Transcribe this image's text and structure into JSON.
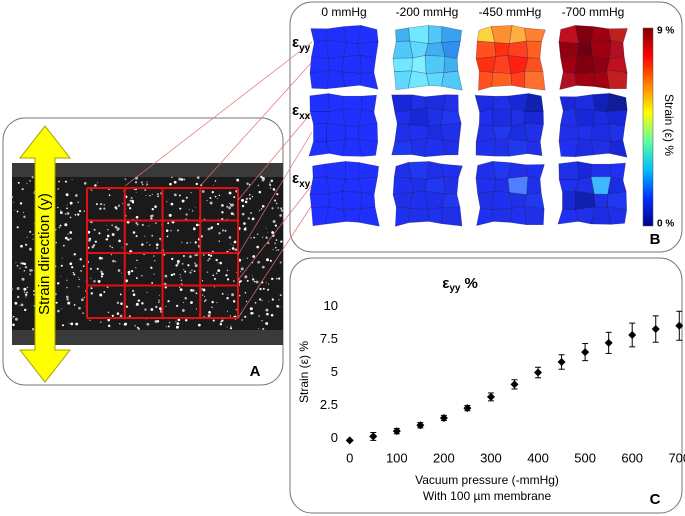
{
  "panel_a": {
    "label": "A",
    "arrow_text": "Strain direction (y)"
  },
  "panel_b": {
    "label": "B",
    "columns": [
      "0 mmHg",
      "-200 mmHg",
      "-450 mmHg",
      "-700 mmHg"
    ],
    "rows": [
      {
        "symbol": "ε",
        "subscript": "yy"
      },
      {
        "symbol": "ε",
        "subscript": "xx"
      },
      {
        "symbol": "ε",
        "subscript": "xy"
      }
    ],
    "colorbar": {
      "label": "Strain (ε) %",
      "max_label": "9 %",
      "min_label": "0 %",
      "colors": [
        "#00008f",
        "#0030ff",
        "#00c0ff",
        "#60ffa0",
        "#ffff00",
        "#ff8000",
        "#ff0000",
        "#800000"
      ]
    },
    "maps": [
      [
        "#2030ff",
        "#2030ff",
        "#2030ff",
        "#2030ff",
        "#2030ff",
        "#2030ff",
        "#2030ff",
        "#2030ff",
        "#2030ff",
        "#2030ff",
        "#2030ff",
        "#2030ff",
        "#2030ff",
        "#2030ff",
        "#2030ff",
        "#2030ff"
      ],
      [
        "#40b0f0",
        "#70e8ff",
        "#50c8f8",
        "#3aa0f0",
        "#50c8f8",
        "#60d8ff",
        "#40b0f0",
        "#3090f0",
        "#70e8ff",
        "#80f0ff",
        "#50c8f8",
        "#40b0f0",
        "#60d8ff",
        "#70e8ff",
        "#60d8ff",
        "#50c8f8"
      ],
      [
        "#ffd040",
        "#ff9030",
        "#ffb040",
        "#ff8030",
        "#ff5020",
        "#ff3010",
        "#ff4020",
        "#ff6020",
        "#ff3010",
        "#ff4020",
        "#ff2010",
        "#ff5020",
        "#ff5020",
        "#ff6020",
        "#ff4020",
        "#ff7030"
      ],
      [
        "#c01020",
        "#800010",
        "#a00010",
        "#c02020",
        "#900010",
        "#700010",
        "#a00010",
        "#b01020",
        "#a00010",
        "#800010",
        "#900010",
        "#c01020",
        "#b01020",
        "#a00010",
        "#a00010",
        "#c02020"
      ],
      [
        "#2030ff",
        "#2030ff",
        "#2030ff",
        "#2030ff",
        "#2030ff",
        "#2030ff",
        "#2030ff",
        "#2030ff",
        "#2030ff",
        "#2030ff",
        "#2030ff",
        "#2030ff",
        "#2030ff",
        "#2030ff",
        "#2030ff",
        "#2030ff"
      ],
      [
        "#1828d8",
        "#2030e8",
        "#1c2ce0",
        "#2030e8",
        "#2030f0",
        "#1828d8",
        "#2030e8",
        "#2038f0",
        "#2030e8",
        "#2030f0",
        "#1c2ce0",
        "#2030e8",
        "#2038f0",
        "#2030e8",
        "#2030f0",
        "#2030e8"
      ],
      [
        "#1c2ce0",
        "#2030e8",
        "#1828d8",
        "#1020b0",
        "#2030f0",
        "#1c2ce0",
        "#2030e8",
        "#1828d8",
        "#2030e8",
        "#2038f0",
        "#1c2ce0",
        "#2030e8",
        "#2030f0",
        "#2030e8",
        "#2038f0",
        "#2030e8"
      ],
      [
        "#1828d8",
        "#1c2ce0",
        "#1020b8",
        "#101c98",
        "#2030e8",
        "#1828d8",
        "#1c2ce0",
        "#1828d8",
        "#2030e8",
        "#2030f0",
        "#1c2ce0",
        "#2030e8",
        "#2030f0",
        "#1c2ce0",
        "#2030e8",
        "#1828d8"
      ],
      [
        "#2030ff",
        "#2030ff",
        "#2030ff",
        "#2030ff",
        "#2030ff",
        "#2030ff",
        "#2030ff",
        "#2030ff",
        "#2030ff",
        "#2030ff",
        "#2030ff",
        "#2030ff",
        "#2030ff",
        "#2030ff",
        "#2030ff",
        "#2030ff"
      ],
      [
        "#2030e8",
        "#2038f0",
        "#2030e8",
        "#2030f0",
        "#2030f0",
        "#2030e8",
        "#2038f0",
        "#2030e8",
        "#2030e8",
        "#2030f0",
        "#2030e8",
        "#2038f0",
        "#2030f0",
        "#2030e8",
        "#2030f0",
        "#2030e8"
      ],
      [
        "#2030e8",
        "#2038f0",
        "#2030e8",
        "#2030f0",
        "#2030f0",
        "#2030e8",
        "#5080ff",
        "#2030e8",
        "#2030e8",
        "#2030f0",
        "#2030e8",
        "#2038f0",
        "#2030f0",
        "#2030e8",
        "#2030f0",
        "#2030e8"
      ],
      [
        "#2030e8",
        "#1828d8",
        "#2030e8",
        "#2030f0",
        "#2030f0",
        "#2030e8",
        "#40b8ff",
        "#1c2ce0",
        "#1828d8",
        "#1020b0",
        "#2030e8",
        "#2038f0",
        "#2030f0",
        "#2030e8",
        "#1c2ce0",
        "#2030e8"
      ]
    ]
  },
  "chart_data": {
    "type": "scatter",
    "label": "C",
    "title": {
      "symbol": "ε",
      "subscript": "yy",
      "suffix": "%"
    },
    "x_label": [
      "Vacuum pressure (-mmHg)",
      "With 100 µm membrane"
    ],
    "y_label": "Strain (ε) %",
    "x": [
      0,
      50,
      100,
      150,
      200,
      250,
      300,
      350,
      400,
      450,
      500,
      550,
      600,
      650,
      700
    ],
    "values": [
      -0.15,
      0.15,
      0.55,
      1.0,
      1.55,
      2.3,
      3.15,
      4.1,
      5.0,
      5.8,
      6.55,
      7.25,
      7.85,
      8.3,
      8.55
    ],
    "errors": [
      0,
      0.3,
      0.2,
      0.2,
      0.2,
      0.2,
      0.3,
      0.35,
      0.4,
      0.55,
      0.65,
      0.8,
      0.9,
      1.0,
      1.1
    ],
    "color": "#000000",
    "xlim": [
      -10,
      710
    ],
    "ylim": [
      -0.5,
      10.2
    ],
    "xticks": [
      0,
      100,
      200,
      300,
      400,
      500,
      600,
      700
    ],
    "yticks": [
      0,
      2.5,
      5,
      7.5,
      10
    ],
    "grid": false
  }
}
